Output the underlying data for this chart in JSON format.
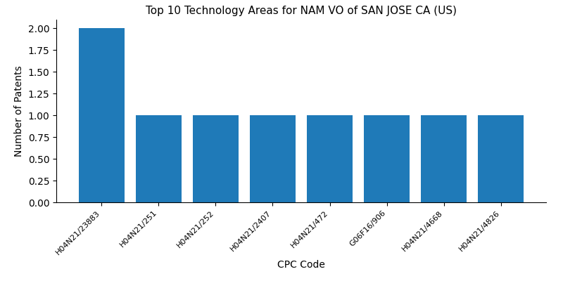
{
  "title": "Top 10 Technology Areas for NAM VO of SAN JOSE CA (US)",
  "xlabel": "CPC Code",
  "ylabel": "Number of Patents",
  "categories": [
    "H04N21/23883",
    "H04N21/251",
    "H04N21/252",
    "H04N21/2407",
    "H04N21/472",
    "G06F16/906",
    "H04N21/4668",
    "H04N21/4826"
  ],
  "values": [
    2,
    1,
    1,
    1,
    1,
    1,
    1,
    1
  ],
  "bar_color": "#1f7ab8",
  "ylim": [
    0,
    2.1
  ],
  "yticks": [
    0.0,
    0.25,
    0.5,
    0.75,
    1.0,
    1.25,
    1.5,
    1.75,
    2.0
  ],
  "figsize": [
    8.0,
    4.0
  ],
  "dpi": 100,
  "bar_width": 0.8,
  "title_fontsize": 11,
  "axis_fontsize": 10,
  "tick_fontsize": 8
}
